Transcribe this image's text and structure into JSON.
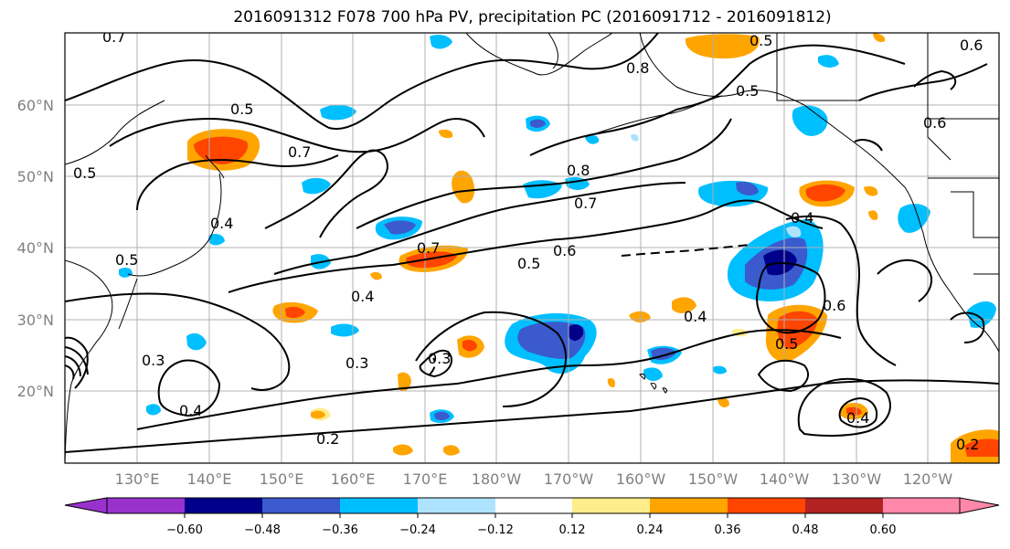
{
  "title": "2016091312 F078 700 hPa PV, precipitation PC (2016091712 - 2016091812)",
  "lat_labels": [
    "60°N",
    "50°N",
    "40°N",
    "30°N",
    "20°N"
  ],
  "lon_labels": [
    "130°E",
    "140°E",
    "150°E",
    "160°E",
    "170°E",
    "180°W",
    "170°W",
    "160°W",
    "150°W",
    "140°W",
    "130°W",
    "120°W"
  ],
  "colorbar": {
    "colors": [
      "#9932cc",
      "#00008b",
      "#3a5acd",
      "#00bfff",
      "#aee3ff",
      "#ffffff",
      "#ffec8b",
      "#ffa500",
      "#ff4500",
      "#b22222",
      "#ff88aa"
    ],
    "ticks": [
      "−0.60",
      "−0.48",
      "−0.36",
      "−0.24",
      "−0.12",
      "0.12",
      "0.24",
      "0.36",
      "0.48",
      "0.60"
    ]
  },
  "contour_labels": [
    "0.7",
    "0.5",
    "0.7",
    "0.5",
    "0.5",
    "0.8",
    "0.7",
    "0.8",
    "0.5",
    "0.6",
    "0.6",
    "0.7",
    "0.6",
    "0.5",
    "0.5",
    "0.4",
    "0.4",
    "0.4",
    "0.6",
    "0.4",
    "0.5",
    "0.3",
    "0.3",
    "0.4",
    "0.2",
    "0.3",
    "0.4",
    "0.2"
  ],
  "colors": {
    "contour": "#000000",
    "grid": "#b0b0b0",
    "coast": "#000000"
  }
}
